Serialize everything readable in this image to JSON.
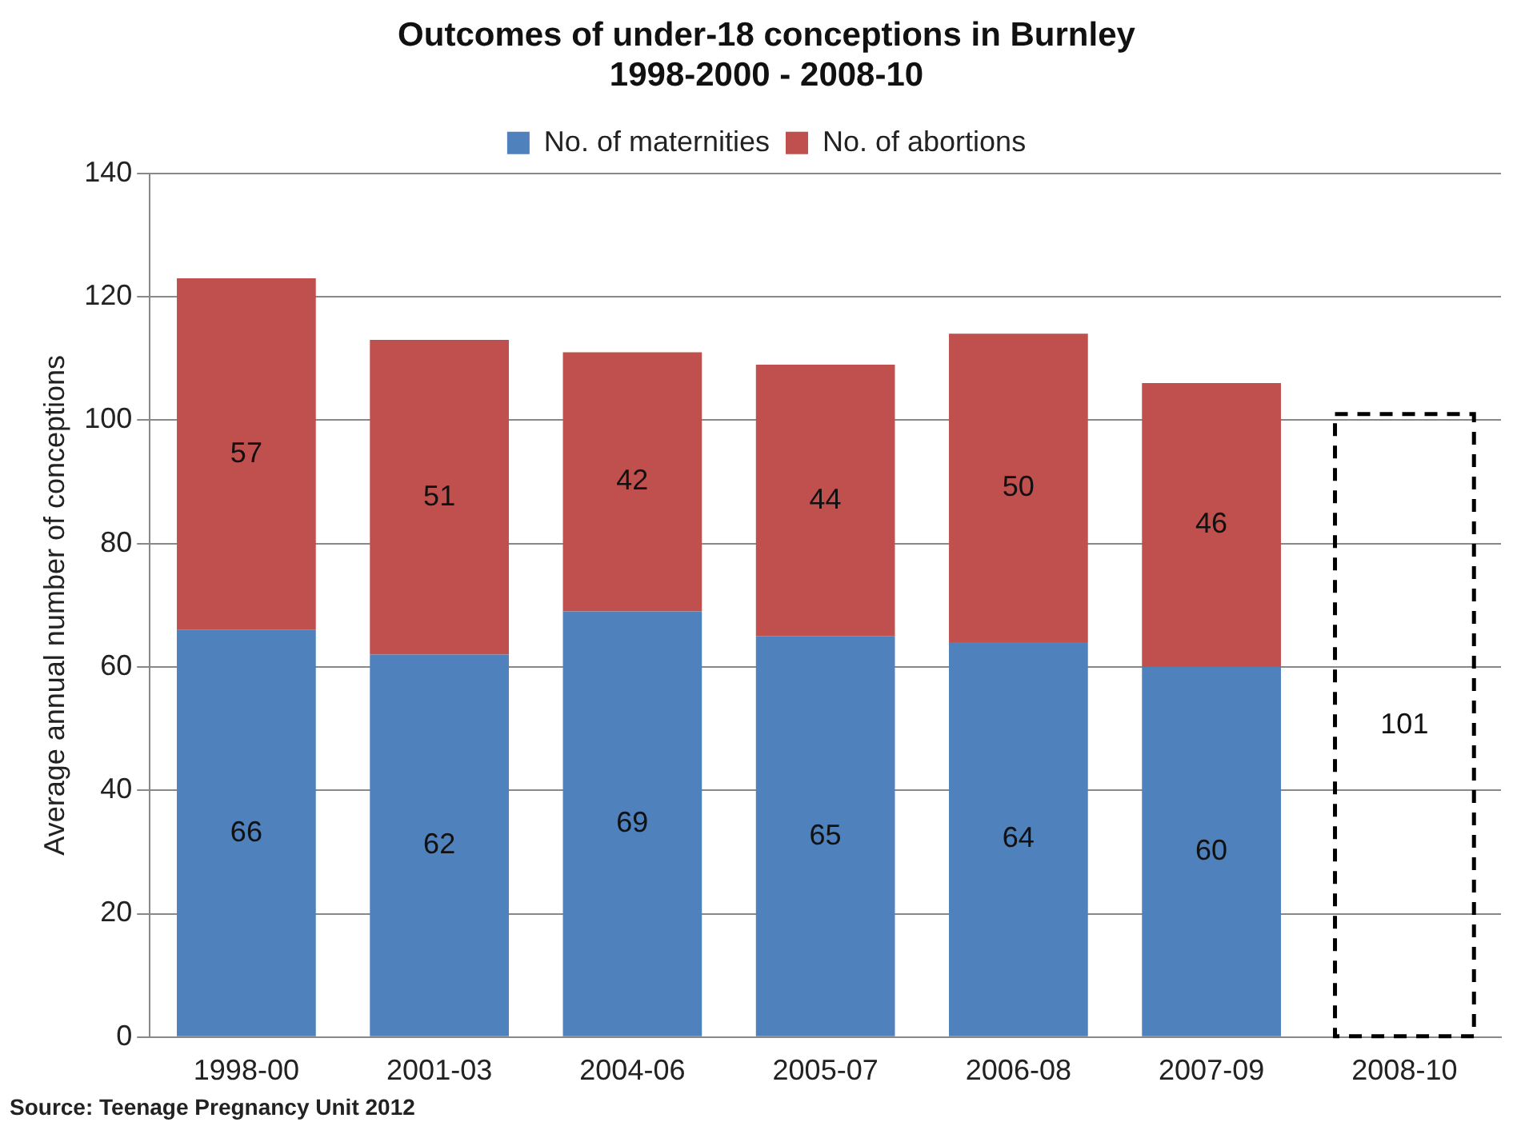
{
  "chart_data": {
    "type": "bar",
    "title": "Outcomes of under-18 conceptions in Burnley\n1998-2000 - 2008-10",
    "ylabel": "Average annual number of conceptions",
    "categories": [
      "1998-00",
      "2001-03",
      "2004-06",
      "2005-07",
      "2006-08",
      "2007-09",
      "2008-10"
    ],
    "series": [
      {
        "name": "No. of maternities",
        "color": "#4f81bd",
        "values": [
          66,
          62,
          69,
          65,
          64,
          60,
          null
        ]
      },
      {
        "name": "No. of abortions",
        "color": "#c0504d",
        "values": [
          57,
          51,
          42,
          44,
          50,
          46,
          null
        ]
      },
      {
        "color": "#000000",
        "line_style": "dashed",
        "values": [
          null,
          null,
          null,
          null,
          null,
          null,
          101
        ]
      }
    ],
    "stacked": true,
    "ylim": [
      0,
      140
    ],
    "yticks": [
      0,
      20,
      40,
      60,
      80,
      100,
      120,
      140
    ],
    "grid": "y",
    "legend": "top",
    "data_labels": true,
    "annotations": [
      "Source: Teenage Pregnancy Unit 2012"
    ]
  }
}
